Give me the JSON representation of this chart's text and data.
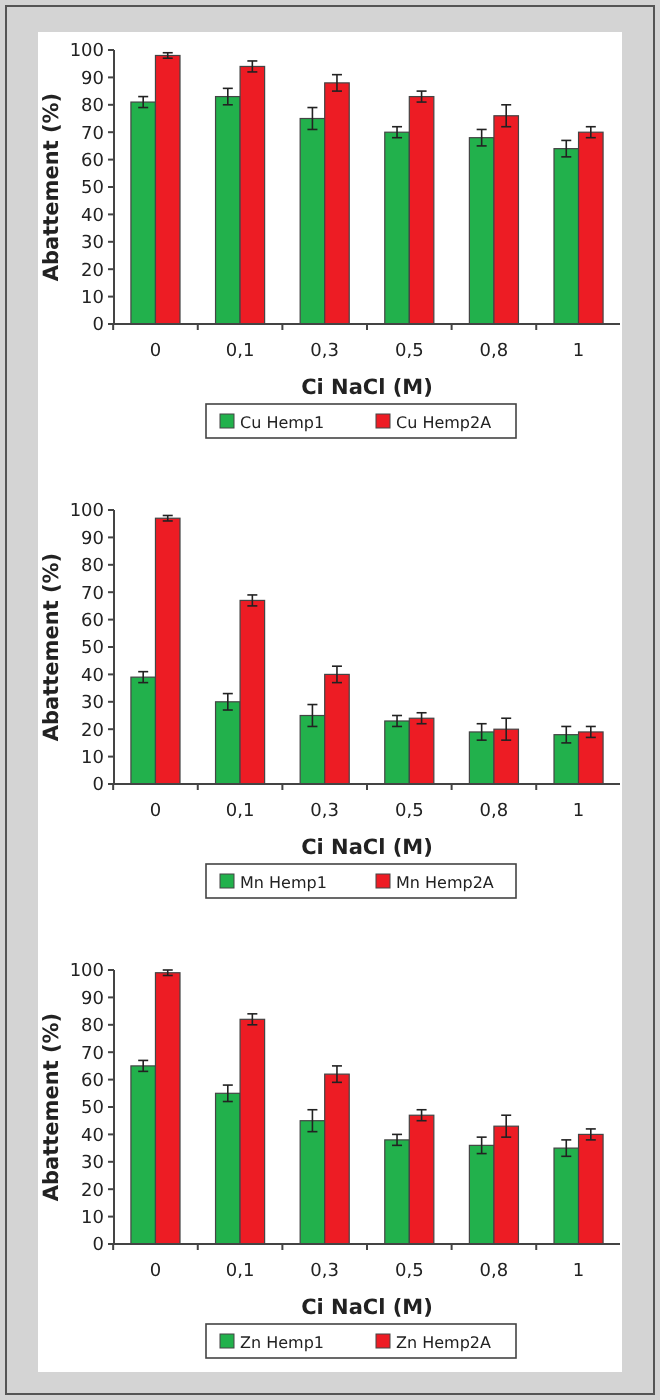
{
  "chart_data": [
    {
      "type": "bar",
      "xlabel": "Ci NaCl (M)",
      "ylabel": "Abattement (%)",
      "categories": [
        "0",
        "0,1",
        "0,3",
        "0,5",
        "0,8",
        "1"
      ],
      "ylim": [
        0,
        100
      ],
      "yticks": [
        0,
        10,
        20,
        30,
        40,
        50,
        60,
        70,
        80,
        90,
        100
      ],
      "grid": false,
      "legend": "bottom",
      "series": [
        {
          "name": "Cu Hemp1",
          "color": "#22b14c",
          "values": [
            81,
            83,
            75,
            70,
            68,
            64
          ],
          "errors": [
            2,
            3,
            4,
            2,
            3,
            3
          ]
        },
        {
          "name": "Cu Hemp2A",
          "color": "#ed1c24",
          "values": [
            98,
            94,
            88,
            83,
            76,
            70
          ],
          "errors": [
            1,
            2,
            3,
            2,
            4,
            2
          ]
        }
      ]
    },
    {
      "type": "bar",
      "xlabel": "Ci NaCl (M)",
      "ylabel": "Abattement (%)",
      "categories": [
        "0",
        "0,1",
        "0,3",
        "0,5",
        "0,8",
        "1"
      ],
      "ylim": [
        0,
        100
      ],
      "yticks": [
        0,
        10,
        20,
        30,
        40,
        50,
        60,
        70,
        80,
        90,
        100
      ],
      "grid": false,
      "legend": "bottom",
      "series": [
        {
          "name": "Mn Hemp1",
          "color": "#22b14c",
          "values": [
            39,
            30,
            25,
            23,
            19,
            18
          ],
          "errors": [
            2,
            3,
            4,
            2,
            3,
            3
          ]
        },
        {
          "name": "Mn Hemp2A",
          "color": "#ed1c24",
          "values": [
            97,
            67,
            40,
            24,
            20,
            19
          ],
          "errors": [
            1,
            2,
            3,
            2,
            4,
            2
          ]
        }
      ]
    },
    {
      "type": "bar",
      "xlabel": "Ci NaCl (M)",
      "ylabel": "Abattement (%)",
      "categories": [
        "0",
        "0,1",
        "0,3",
        "0,5",
        "0,8",
        "1"
      ],
      "ylim": [
        0,
        100
      ],
      "yticks": [
        0,
        10,
        20,
        30,
        40,
        50,
        60,
        70,
        80,
        90,
        100
      ],
      "grid": false,
      "legend": "bottom",
      "series": [
        {
          "name": "Zn Hemp1",
          "color": "#22b14c",
          "values": [
            65,
            55,
            45,
            38,
            36,
            35
          ],
          "errors": [
            2,
            3,
            4,
            2,
            3,
            3
          ]
        },
        {
          "name": "Zn Hemp2A",
          "color": "#ed1c24",
          "values": [
            99,
            82,
            62,
            47,
            43,
            40
          ],
          "errors": [
            1,
            2,
            3,
            2,
            4,
            2
          ]
        }
      ]
    }
  ]
}
